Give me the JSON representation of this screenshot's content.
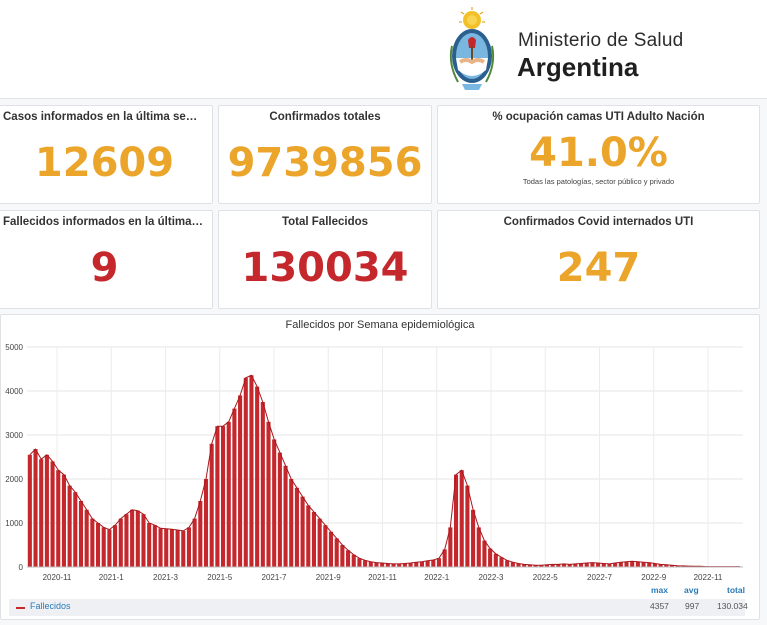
{
  "header": {
    "ministry_line1": "Ministerio de Salud",
    "ministry_line2": "Argentina"
  },
  "cards": {
    "weekly_cases": {
      "title": "Casos informados en la última semana",
      "value": "12609"
    },
    "total_confirmed": {
      "title": "Confirmados totales",
      "value": "9739856"
    },
    "icu_occupancy": {
      "title": "% ocupación camas UTI Adulto Nación",
      "value": "41.0%",
      "note": "Todas las patologías, sector público y privado"
    },
    "weekly_deaths": {
      "title": "Fallecidos informados en la última se...",
      "value": "9"
    },
    "total_deaths": {
      "title": "Total Fallecidos",
      "value": "130034"
    },
    "icu_covid": {
      "title": "Confirmados Covid internados UTI",
      "value": "247"
    }
  },
  "colors": {
    "orange": "#eba52a",
    "red": "#c4282d",
    "stat_blue": "#2a7bb8"
  },
  "chart_data": {
    "type": "bar",
    "title": "Fallecidos por Semana epidemiológica",
    "ylim": [
      0,
      5000
    ],
    "yticks": [
      "0",
      "1000",
      "2000",
      "3000",
      "4000",
      "5000"
    ],
    "xticks": [
      "2020-11",
      "2021-1",
      "2021-3",
      "2021-5",
      "2021-7",
      "2021-9",
      "2021-11",
      "2022-1",
      "2022-3",
      "2022-5",
      "2022-7",
      "2022-9",
      "2022-11"
    ],
    "grid": true,
    "legend": "bottom",
    "series": [
      {
        "name": "Fallecidos",
        "color": "#c4282d",
        "values": [
          2550,
          2680,
          2450,
          2550,
          2400,
          2200,
          2100,
          1850,
          1700,
          1500,
          1300,
          1100,
          1000,
          900,
          850,
          950,
          1100,
          1200,
          1300,
          1280,
          1200,
          1000,
          950,
          880,
          870,
          860,
          840,
          820,
          900,
          1100,
          1500,
          2000,
          2800,
          3200,
          3200,
          3300,
          3600,
          3900,
          4300,
          4357,
          4100,
          3750,
          3300,
          2900,
          2600,
          2300,
          2000,
          1800,
          1600,
          1400,
          1250,
          1100,
          950,
          800,
          650,
          500,
          380,
          280,
          200,
          150,
          120,
          100,
          90,
          80,
          70,
          70,
          80,
          90,
          110,
          120,
          140,
          160,
          200,
          400,
          900,
          2100,
          2200,
          1850,
          1300,
          900,
          600,
          420,
          300,
          220,
          150,
          110,
          80,
          60,
          50,
          40,
          40,
          50,
          60,
          60,
          70,
          60,
          70,
          80,
          90,
          100,
          90,
          80,
          70,
          90,
          110,
          120,
          130,
          120,
          110,
          100,
          80,
          60,
          50,
          40,
          30,
          25,
          20,
          15,
          15,
          10,
          10,
          10,
          10,
          10,
          10,
          9
        ]
      }
    ],
    "stats": {
      "max": "4357",
      "avg": "997",
      "total": "130.034"
    },
    "stat_labels": {
      "max": "max",
      "avg": "avg",
      "total": "total"
    }
  }
}
